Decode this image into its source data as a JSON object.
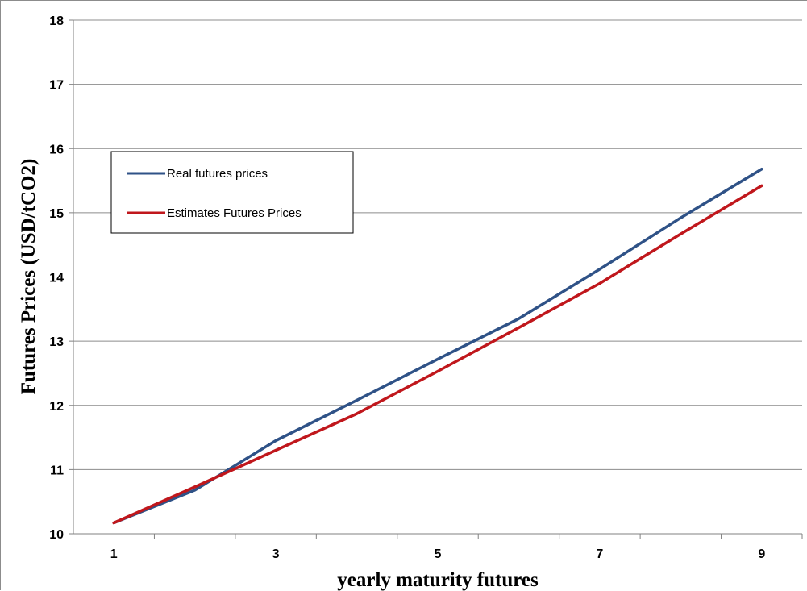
{
  "chart_data": {
    "type": "line",
    "title": "",
    "xlabel": "yearly maturity futures",
    "ylabel": "Futures Prices (USD/tCO2)",
    "xlim": [
      0.5,
      9.5
    ],
    "ylim": [
      10,
      18
    ],
    "x_ticks": [
      1,
      3,
      5,
      7,
      9
    ],
    "y_ticks": [
      10,
      11,
      12,
      13,
      14,
      15,
      16,
      17,
      18
    ],
    "grid": "horizontal",
    "legend_position": "upper-left",
    "x": [
      1,
      2,
      3,
      4,
      5,
      6,
      7,
      8,
      9
    ],
    "series": [
      {
        "name": "Real futures prices",
        "color": "#2f5287",
        "values": [
          10.17,
          10.68,
          11.45,
          12.08,
          12.72,
          13.35,
          14.12,
          14.92,
          15.68
        ]
      },
      {
        "name": "Estimates Futures Prices",
        "color": "#c0171c",
        "values": [
          10.17,
          10.73,
          11.3,
          11.87,
          12.53,
          13.21,
          13.9,
          14.67,
          15.42
        ]
      }
    ]
  }
}
